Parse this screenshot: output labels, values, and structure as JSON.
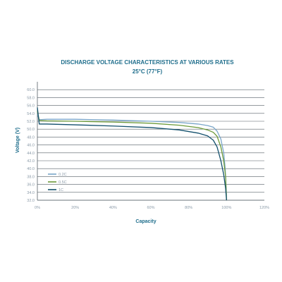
{
  "chart_data": {
    "type": "line",
    "title": "DISCHARGE VOLTAGE CHARACTERISTICS AT VARIOUS RATES",
    "subtitle": "25°C (77°F)",
    "xlabel": "Capacity",
    "ylabel": "Voltage (V)",
    "xlim": [
      0,
      120
    ],
    "ylim": [
      32,
      62
    ],
    "x_tick_labels": [
      "0%",
      "20%",
      "40%",
      "60%",
      "80%",
      "100%",
      "120%"
    ],
    "x_tick_values": [
      0,
      20,
      40,
      60,
      80,
      100,
      120
    ],
    "y_tick_labels": [
      "32.0",
      "34.0",
      "36.0",
      "38.0",
      "40.0",
      "42.0",
      "44.0",
      "46.0",
      "48.0",
      "50.0",
      "52.0",
      "54.0",
      "56.0",
      "58.0",
      "60.0"
    ],
    "y_tick_values": [
      32,
      34,
      36,
      38,
      40,
      42,
      44,
      46,
      48,
      50,
      52,
      54,
      56,
      58,
      60
    ],
    "grid": "horizontal",
    "legend_position": "bottom-left",
    "series": [
      {
        "name": "0.2C",
        "color": "#7aa6c9",
        "points": [
          [
            0,
            53.8
          ],
          [
            1,
            52.4
          ],
          [
            5,
            52.5
          ],
          [
            20,
            52.5
          ],
          [
            40,
            52.3
          ],
          [
            60,
            52.0
          ],
          [
            75,
            51.7
          ],
          [
            85,
            51.3
          ],
          [
            90,
            50.9
          ],
          [
            93,
            50.5
          ],
          [
            95,
            49.5
          ],
          [
            97,
            47.5
          ],
          [
            98.5,
            44.0
          ],
          [
            99.3,
            40.0
          ],
          [
            99.8,
            35.0
          ],
          [
            100,
            32.2
          ]
        ]
      },
      {
        "name": "0.5C",
        "color": "#6c9a3a",
        "points": [
          [
            0,
            54.6
          ],
          [
            1,
            52.2
          ],
          [
            5,
            52.1
          ],
          [
            20,
            52.0
          ],
          [
            40,
            51.8
          ],
          [
            60,
            51.5
          ],
          [
            75,
            51.0
          ],
          [
            85,
            50.4
          ],
          [
            90,
            49.8
          ],
          [
            93,
            49.2
          ],
          [
            95,
            48.2
          ],
          [
            97,
            45.5
          ],
          [
            98.5,
            42.0
          ],
          [
            99.5,
            38.0
          ],
          [
            100,
            32.0
          ]
        ]
      },
      {
        "name": "1C",
        "color": "#13506d",
        "points": [
          [
            0,
            55.5
          ],
          [
            1,
            51.3
          ],
          [
            5,
            51.3
          ],
          [
            20,
            51.1
          ],
          [
            40,
            50.8
          ],
          [
            60,
            50.4
          ],
          [
            75,
            49.8
          ],
          [
            85,
            49.0
          ],
          [
            90,
            48.3
          ],
          [
            93,
            47.2
          ],
          [
            95,
            45.5
          ],
          [
            97,
            42.0
          ],
          [
            98.5,
            38.5
          ],
          [
            99.5,
            35.0
          ],
          [
            100,
            32.0
          ]
        ]
      }
    ]
  }
}
